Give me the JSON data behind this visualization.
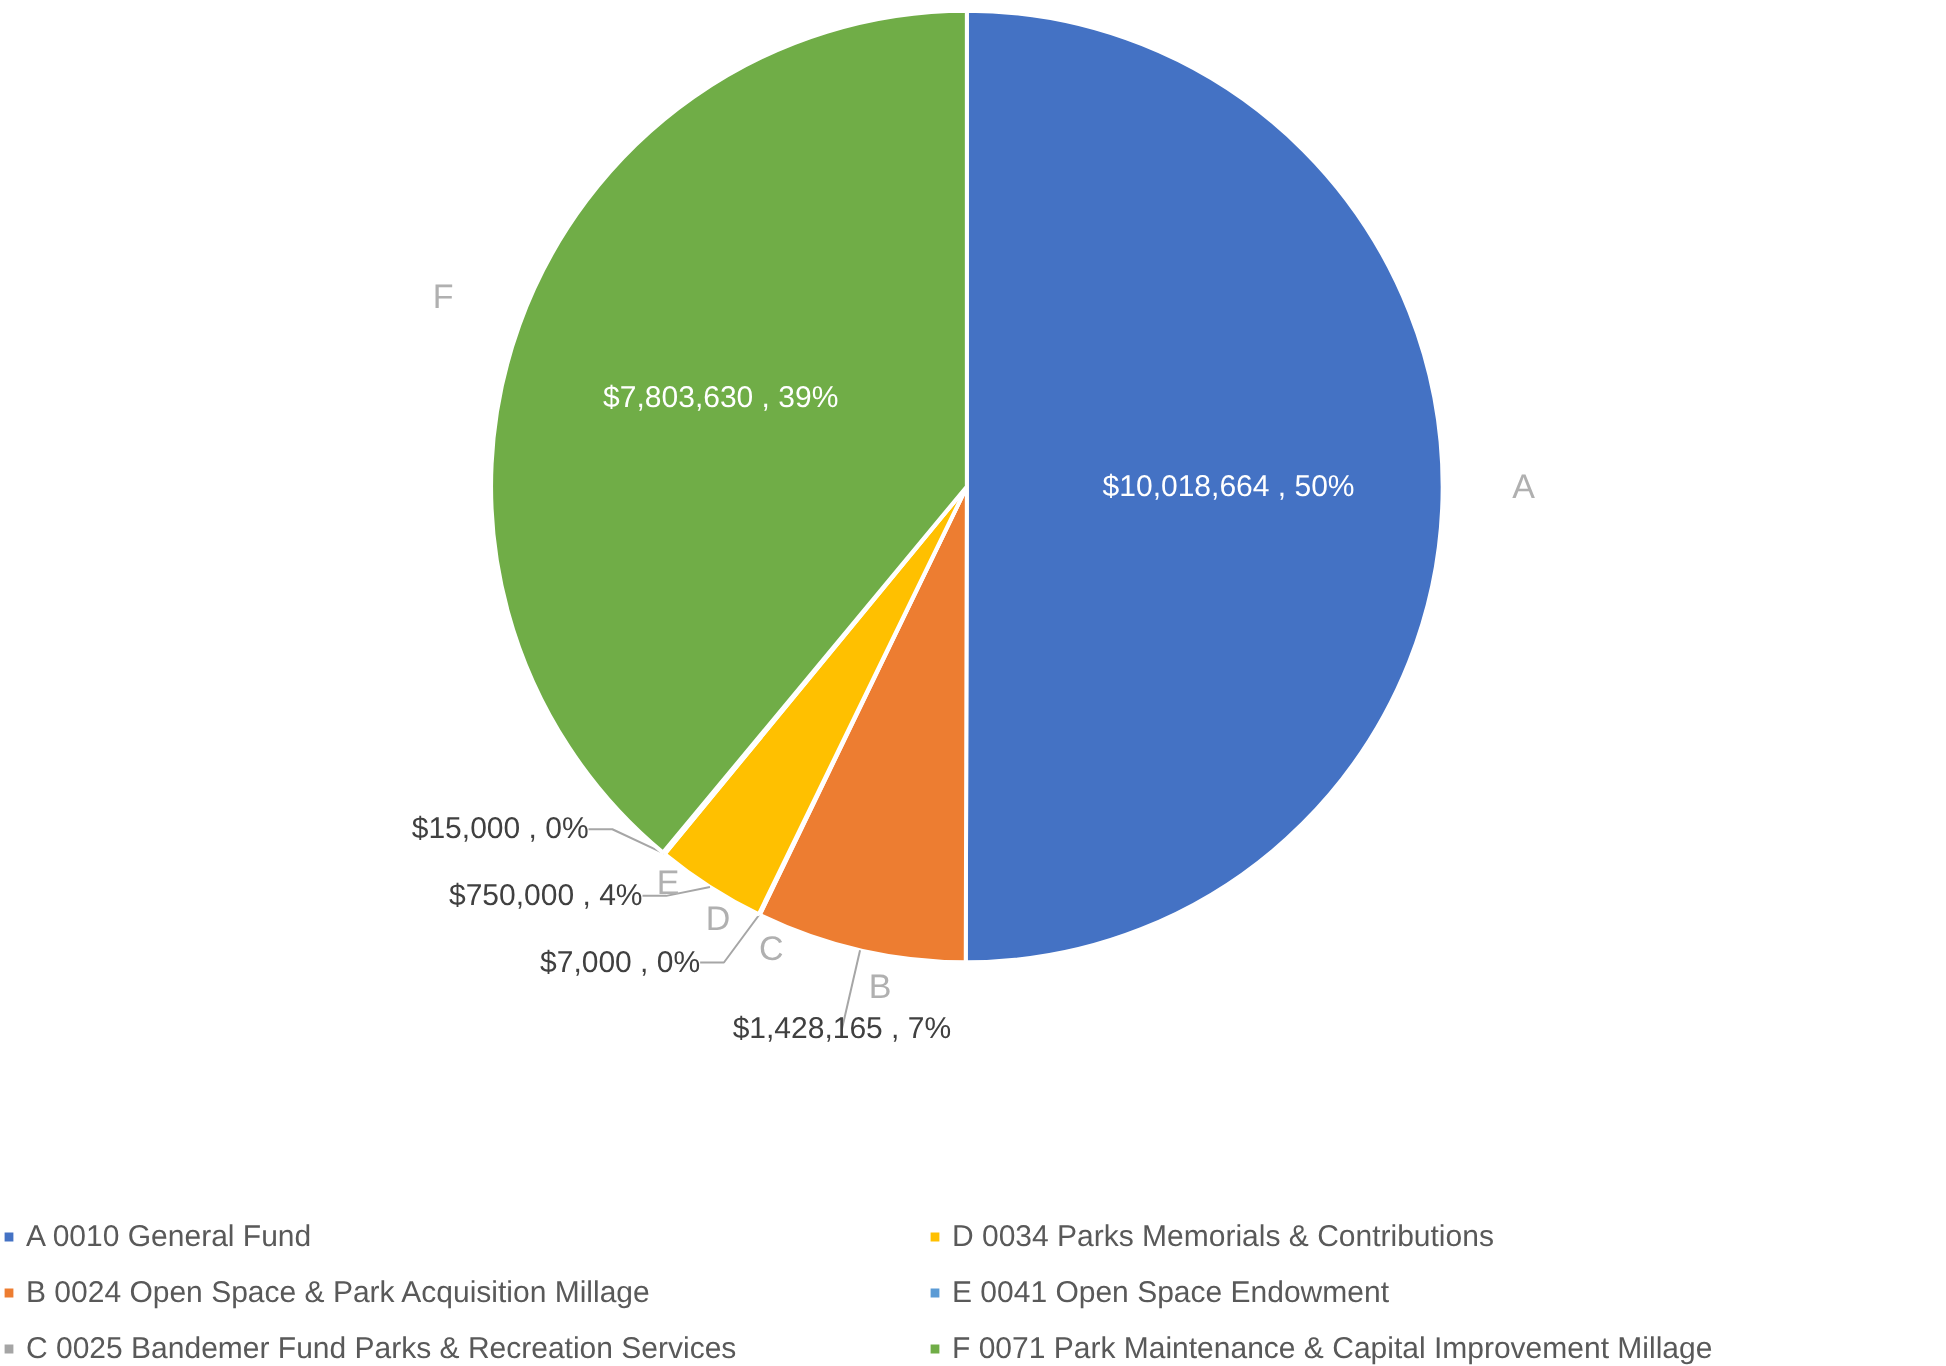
{
  "chart_data": {
    "type": "pie",
    "categories": [
      "A 0010 General Fund",
      "B 0024 Open Space & Park Acquisition Millage",
      "C 0025 Bandemer Fund Parks & Recreation Services",
      "D 0034 Parks Memorials & Contributions",
      "E 0041 Open Space Endowment",
      "F 0071 Park Maintenance & Capital Improvement Millage"
    ],
    "values": [
      10018664,
      1428165,
      7000,
      750000,
      15000,
      7803630
    ],
    "colors": [
      "#4472c4",
      "#ed7d31",
      "#a5a5a5",
      "#ffc000",
      "#5b9bd5",
      "#70ad47"
    ],
    "value_labels": [
      "$10,018,664 , 50%",
      "$1,428,165 , 7%",
      "$7,000 , 0%",
      "$750,000 , 4%",
      "$15,000 , 0%",
      "$7,803,630 , 39%"
    ],
    "annotations": [
      "A",
      "B",
      "C",
      "D",
      "E",
      "F"
    ],
    "legend": "bottom"
  }
}
